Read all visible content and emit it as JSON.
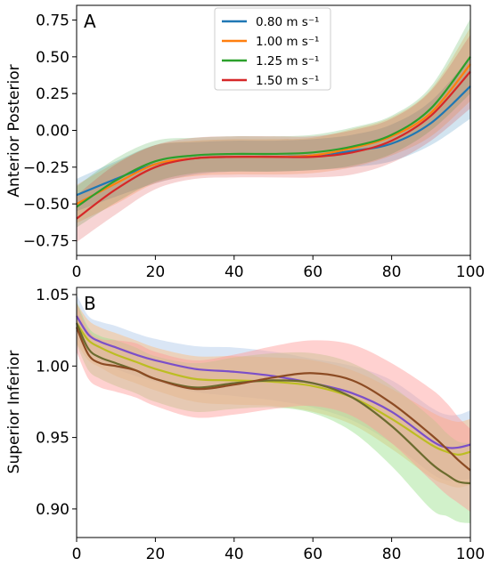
{
  "chart_data": [
    {
      "type": "line",
      "panel_label": "A",
      "xlabel": "",
      "ylabel": "Anterior Posterior",
      "xlim": [
        0,
        100
      ],
      "ylim": [
        -0.85,
        0.85
      ],
      "xticks": [
        "0",
        "20",
        "40",
        "60",
        "80",
        "100"
      ],
      "yticks": [
        "−0.75",
        "−0.50",
        "−0.25",
        "0.00",
        "0.25",
        "0.50",
        "0.75"
      ],
      "ytick_values": [
        -0.75,
        -0.5,
        -0.25,
        0.0,
        0.25,
        0.5,
        0.75
      ],
      "legend_position": "upper-center",
      "series": [
        {
          "name": "0.80 m s⁻¹",
          "color": "#1f77b4",
          "x": [
            0,
            10,
            20,
            30,
            40,
            50,
            60,
            70,
            80,
            90,
            100
          ],
          "y": [
            -0.44,
            -0.33,
            -0.23,
            -0.19,
            -0.18,
            -0.18,
            -0.17,
            -0.14,
            -0.09,
            0.05,
            0.3
          ],
          "band_lower": [
            -0.55,
            -0.45,
            -0.36,
            -0.3,
            -0.28,
            -0.28,
            -0.27,
            -0.25,
            -0.21,
            -0.1,
            0.08
          ],
          "band_upper": [
            -0.33,
            -0.21,
            -0.1,
            -0.08,
            -0.07,
            -0.07,
            -0.06,
            -0.03,
            0.04,
            0.2,
            0.5
          ]
        },
        {
          "name": "1.00 m s⁻¹",
          "color": "#ff7f0e",
          "x": [
            0,
            10,
            20,
            30,
            40,
            50,
            60,
            70,
            80,
            90,
            100
          ],
          "y": [
            -0.5,
            -0.36,
            -0.23,
            -0.19,
            -0.18,
            -0.18,
            -0.17,
            -0.12,
            -0.04,
            0.12,
            0.45
          ],
          "band_lower": [
            -0.63,
            -0.5,
            -0.36,
            -0.31,
            -0.3,
            -0.3,
            -0.29,
            -0.25,
            -0.17,
            -0.04,
            0.2
          ],
          "band_upper": [
            -0.37,
            -0.22,
            -0.1,
            -0.07,
            -0.06,
            -0.06,
            -0.05,
            0.01,
            0.09,
            0.28,
            0.7
          ]
        },
        {
          "name": "1.25 m s⁻¹",
          "color": "#2ca02c",
          "x": [
            0,
            10,
            20,
            30,
            40,
            50,
            60,
            70,
            80,
            90,
            100
          ],
          "y": [
            -0.52,
            -0.34,
            -0.21,
            -0.17,
            -0.16,
            -0.16,
            -0.15,
            -0.11,
            -0.03,
            0.15,
            0.5
          ],
          "band_lower": [
            -0.66,
            -0.49,
            -0.35,
            -0.29,
            -0.28,
            -0.28,
            -0.27,
            -0.24,
            -0.16,
            0.0,
            0.25
          ],
          "band_upper": [
            -0.38,
            -0.19,
            -0.07,
            -0.05,
            -0.04,
            -0.04,
            -0.03,
            0.02,
            0.1,
            0.3,
            0.76
          ]
        },
        {
          "name": "1.50 m s⁻¹",
          "color": "#d62728",
          "x": [
            0,
            10,
            20,
            30,
            40,
            50,
            60,
            70,
            80,
            90,
            100
          ],
          "y": [
            -0.6,
            -0.4,
            -0.25,
            -0.19,
            -0.18,
            -0.18,
            -0.18,
            -0.15,
            -0.07,
            0.1,
            0.4
          ],
          "band_lower": [
            -0.76,
            -0.57,
            -0.4,
            -0.33,
            -0.32,
            -0.32,
            -0.32,
            -0.3,
            -0.22,
            -0.07,
            0.15
          ],
          "band_upper": [
            -0.44,
            -0.23,
            -0.1,
            -0.05,
            -0.04,
            -0.04,
            -0.04,
            0.0,
            0.08,
            0.27,
            0.65
          ]
        }
      ]
    },
    {
      "type": "line",
      "panel_label": "B",
      "xlabel": "",
      "ylabel": "Superior Inferior",
      "xlim": [
        0,
        100
      ],
      "ylim": [
        0.88,
        1.055
      ],
      "xticks": [
        "0",
        "20",
        "40",
        "60",
        "80",
        "100"
      ],
      "yticks": [
        "0.90",
        "0.95",
        "1.00",
        "1.05"
      ],
      "ytick_values": [
        0.9,
        0.95,
        1.0,
        1.05
      ],
      "series": [
        {
          "color": "#7b4fc9",
          "x": [
            0,
            3,
            6,
            10,
            15,
            20,
            30,
            40,
            50,
            60,
            70,
            80,
            90,
            94,
            97,
            100
          ],
          "y": [
            1.035,
            1.022,
            1.017,
            1.013,
            1.008,
            1.004,
            0.998,
            0.996,
            0.993,
            0.988,
            0.981,
            0.968,
            0.948,
            0.943,
            0.943,
            0.945
          ],
          "band_lower": [
            1.02,
            1.009,
            1.003,
            0.998,
            0.993,
            0.989,
            0.982,
            0.979,
            0.976,
            0.971,
            0.962,
            0.946,
            0.925,
            0.92,
            0.92,
            0.921
          ],
          "band_upper": [
            1.05,
            1.035,
            1.031,
            1.028,
            1.023,
            1.019,
            1.014,
            1.013,
            1.01,
            1.005,
            1.0,
            0.99,
            0.971,
            0.966,
            0.966,
            0.969
          ],
          "band_color": "#aec7e8"
        },
        {
          "color": "#bcbd22",
          "x": [
            0,
            3,
            6,
            10,
            15,
            20,
            30,
            40,
            50,
            60,
            70,
            80,
            90,
            94,
            97,
            100
          ],
          "y": [
            1.03,
            1.018,
            1.013,
            1.008,
            1.003,
            0.998,
            0.991,
            0.99,
            0.989,
            0.986,
            0.978,
            0.963,
            0.945,
            0.94,
            0.938,
            0.94
          ],
          "band_lower": [
            1.016,
            1.004,
            0.999,
            0.993,
            0.988,
            0.983,
            0.975,
            0.973,
            0.972,
            0.968,
            0.959,
            0.942,
            0.922,
            0.917,
            0.915,
            0.917
          ],
          "band_upper": [
            1.044,
            1.032,
            1.027,
            1.023,
            1.018,
            1.013,
            1.007,
            1.007,
            1.006,
            1.004,
            0.997,
            0.984,
            0.968,
            0.963,
            0.961,
            0.963
          ],
          "band_color": "#ffbb78"
        },
        {
          "color": "#6b6b2e",
          "x": [
            0,
            3,
            6,
            10,
            15,
            20,
            30,
            40,
            50,
            60,
            70,
            80,
            90,
            94,
            97,
            100
          ],
          "y": [
            1.03,
            1.012,
            1.006,
            1.002,
            0.997,
            0.991,
            0.985,
            0.988,
            0.99,
            0.988,
            0.978,
            0.958,
            0.932,
            0.924,
            0.919,
            0.918
          ],
          "band_lower": [
            1.015,
            0.997,
            0.991,
            0.986,
            0.981,
            0.975,
            0.968,
            0.97,
            0.971,
            0.967,
            0.954,
            0.93,
            0.9,
            0.895,
            0.891,
            0.89
          ],
          "band_upper": [
            1.045,
            1.027,
            1.021,
            1.018,
            1.013,
            1.007,
            1.002,
            1.006,
            1.009,
            1.009,
            1.002,
            0.986,
            0.964,
            0.953,
            0.947,
            0.946
          ],
          "band_color": "#98df8a"
        },
        {
          "color": "#8c4b23",
          "x": [
            0,
            3,
            6,
            10,
            15,
            20,
            30,
            40,
            50,
            60,
            70,
            80,
            90,
            94,
            97,
            100
          ],
          "y": [
            1.027,
            1.008,
            1.002,
            1.0,
            0.997,
            0.991,
            0.984,
            0.987,
            0.992,
            0.995,
            0.99,
            0.974,
            0.952,
            0.942,
            0.934,
            0.927
          ],
          "band_lower": [
            1.01,
            0.991,
            0.985,
            0.982,
            0.978,
            0.972,
            0.964,
            0.966,
            0.97,
            0.972,
            0.965,
            0.946,
            0.92,
            0.91,
            0.904,
            0.898
          ],
          "band_upper": [
            1.044,
            1.025,
            1.019,
            1.018,
            1.016,
            1.01,
            1.004,
            1.008,
            1.014,
            1.018,
            1.015,
            1.002,
            0.984,
            0.974,
            0.964,
            0.956
          ],
          "band_color": "#ff9896"
        }
      ]
    }
  ]
}
